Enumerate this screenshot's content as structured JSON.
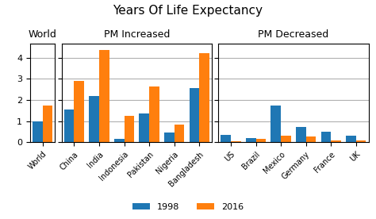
{
  "title": "Years Of Life Expectancy",
  "legend": "lower center",
  "chart_data": [
    {
      "type": "bar",
      "title": "World",
      "categories": [
        "World"
      ],
      "series": [
        {
          "name": "1998",
          "values": [
            1.0
          ]
        },
        {
          "name": "2016",
          "values": [
            1.75
          ]
        }
      ],
      "ylim": [
        0,
        4.65
      ],
      "yticks": [
        0,
        1,
        2,
        3,
        4
      ],
      "grid": true
    },
    {
      "type": "bar",
      "title": "PM Increased",
      "categories": [
        "China",
        "India",
        "Indonesia",
        "Pakistan",
        "Nigeria",
        "Bangladesh"
      ],
      "series": [
        {
          "name": "1998",
          "values": [
            1.55,
            2.2,
            0.15,
            1.35,
            0.45,
            2.55
          ]
        },
        {
          "name": "2016",
          "values": [
            2.9,
            4.35,
            1.25,
            2.65,
            0.85,
            4.2
          ]
        }
      ],
      "ylim": [
        0,
        4.65
      ],
      "yticks": [
        0,
        1,
        2,
        3,
        4
      ],
      "grid": true,
      "tick_labels": "x"
    },
    {
      "type": "bar",
      "title": "PM Decreased",
      "categories": [
        "US",
        "Brazil",
        "Mexico",
        "Germany",
        "France",
        "UK"
      ],
      "series": [
        {
          "name": "1998",
          "values": [
            0.35,
            0.2,
            1.75,
            0.72,
            0.5,
            0.32
          ]
        },
        {
          "name": "2016",
          "values": [
            0.07,
            0.15,
            0.32,
            0.27,
            0.1,
            0.1
          ]
        }
      ],
      "ylim": [
        0,
        4.65
      ],
      "yticks": [
        0,
        1,
        2,
        3,
        4
      ],
      "grid": true,
      "tick_labels": "x"
    }
  ]
}
